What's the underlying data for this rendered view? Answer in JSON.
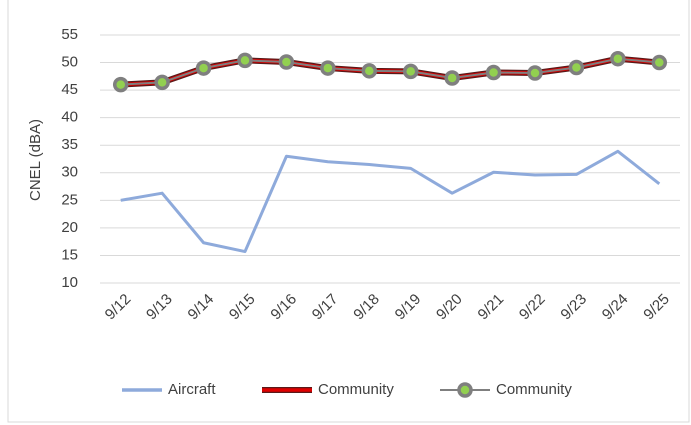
{
  "chart_data": {
    "type": "line",
    "y_label": "CNEL (dBA)",
    "categories": [
      "9/12",
      "9/13",
      "9/14",
      "9/15",
      "9/16",
      "9/17",
      "9/18",
      "9/19",
      "9/20",
      "9/21",
      "9/22",
      "9/23",
      "9/24",
      "9/25"
    ],
    "series": [
      {
        "name": "Aircraft",
        "color": "#8eaadb",
        "values": [
          25,
          26.3,
          17.3,
          15.7,
          33,
          32,
          31.5,
          30.8,
          26.3,
          30.1,
          29.6,
          29.7,
          33.9,
          28
        ]
      },
      {
        "name": "Community",
        "color": "#e00000",
        "values": [
          46,
          46.4,
          49,
          50.4,
          50.1,
          49,
          48.5,
          48.4,
          47.2,
          48.2,
          48.1,
          49.1,
          50.7,
          50
        ]
      },
      {
        "name": "Community",
        "color": "#7f7f7f",
        "marker_color": "#92d050",
        "values": [
          46,
          46.4,
          49,
          50.4,
          50.1,
          49,
          48.5,
          48.4,
          47.2,
          48.2,
          48.1,
          49.1,
          50.7,
          50
        ]
      }
    ],
    "ylim": [
      10,
      55
    ],
    "yticks": [
      10,
      15,
      20,
      25,
      30,
      35,
      40,
      45,
      50,
      55
    ],
    "grid": true,
    "legend": "bottom"
  }
}
